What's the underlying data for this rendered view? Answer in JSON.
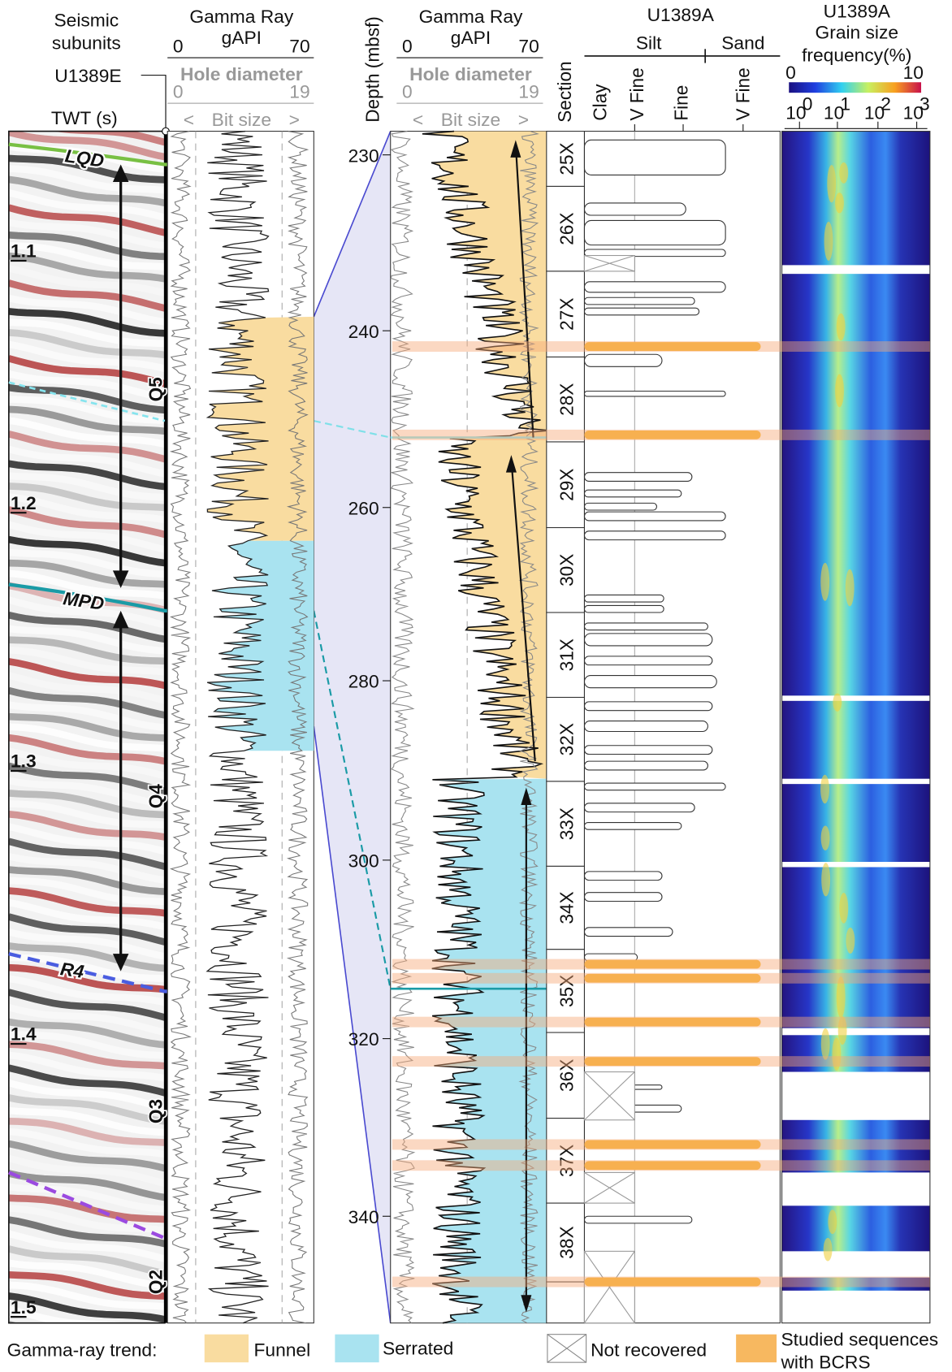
{
  "seismic": {
    "header": [
      "Seismic",
      "subunits"
    ],
    "site": "U1389E",
    "twt_label": "TWT (s)",
    "twt_ticks": [
      1.1,
      1.2,
      1.3,
      1.4,
      1.5
    ],
    "horizons": [
      "LQD",
      "MPD",
      "R4"
    ],
    "units": [
      "Q5",
      "Q4",
      "Q3",
      "Q2"
    ]
  },
  "gamma_ray_left": {
    "title": "Gamma Ray",
    "unit": "gAPI",
    "min": 0,
    "max": 70,
    "caliper": "Hole diameter",
    "cal_min": 0,
    "cal_max": 19,
    "bit_size": [
      "<",
      "Bit size",
      ">"
    ]
  },
  "gamma_ray_core": {
    "title": "Gamma Ray",
    "unit": "gAPI",
    "min": 0,
    "max": 70,
    "caliper": "Hole diameter",
    "cal_min": 0,
    "cal_max": 19,
    "bit_size": [
      "<",
      "Bit size",
      ">"
    ]
  },
  "depth": {
    "label": "Depth (mbsf)",
    "ticks": [
      230,
      240,
      260,
      280,
      300,
      320,
      340
    ]
  },
  "section": {
    "label": "Section",
    "cores": [
      "25X",
      "26X",
      "27X",
      "28X",
      "29X",
      "30X",
      "31X",
      "32X",
      "33X",
      "34X",
      "35X",
      "36X",
      "37X",
      "38X"
    ]
  },
  "lithology": {
    "site": "U1389A",
    "classes": [
      "Silt",
      "Sand"
    ],
    "sizes": [
      "Clay",
      "V Fine",
      "Fine",
      "V Fine"
    ]
  },
  "grain_size": {
    "site": "U1389A",
    "title": [
      "Grain size",
      "frequency(%)"
    ],
    "scale_min": 0,
    "scale_max": 10,
    "axis_base": "10",
    "axis_exponents": [
      0,
      1,
      2,
      3
    ]
  },
  "legend": {
    "title": "Gamma-ray trend:",
    "items": [
      "Funnel",
      "Serrated",
      "Not recovered"
    ],
    "bcrs": [
      "Studied sequences",
      "with BCRS"
    ]
  }
}
